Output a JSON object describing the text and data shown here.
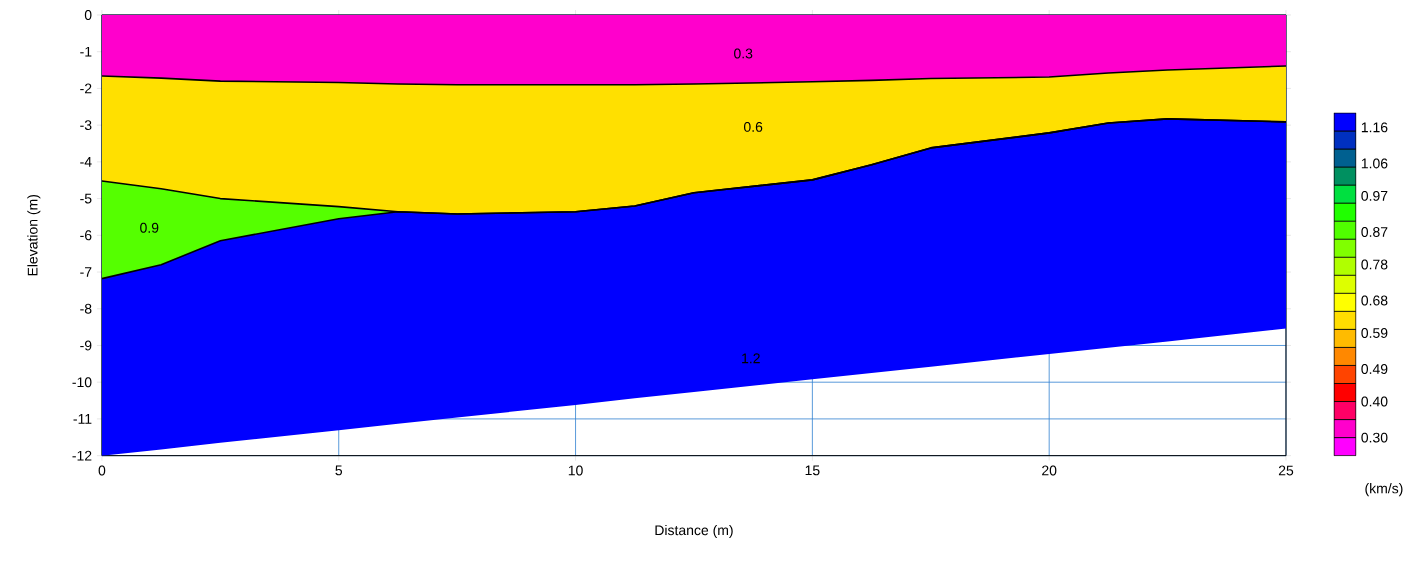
{
  "chart_data": {
    "type": "area",
    "stacked": true,
    "xlabel": "Distance (m)",
    "ylabel": "Elevation (m)",
    "clabel": "(km/s)",
    "x": [
      0,
      1.25,
      2.5,
      5,
      6.25,
      7.5,
      10,
      11.25,
      12.5,
      15,
      16.25,
      17.5,
      20,
      21.25,
      22.5,
      25
    ],
    "series": [
      {
        "color": "#ff00cc",
        "values": [
          -1.66,
          -1.72,
          -1.8,
          -1.84,
          -1.88,
          -1.9,
          -1.9,
          -1.9,
          -1.88,
          -1.82,
          -1.78,
          -1.73,
          -1.69,
          -1.58,
          -1.5,
          -1.39
        ]
      },
      {
        "color": "#ffe000",
        "values": [
          -2.86,
          -3.01,
          -3.2,
          -3.38,
          -3.48,
          -3.52,
          -3.46,
          -3.3,
          -2.96,
          -2.67,
          -2.3,
          -1.89,
          -1.52,
          -1.36,
          -1.33,
          -1.52
        ]
      },
      {
        "color": "#55ff00",
        "values": [
          -2.66,
          -2.07,
          -1.15,
          -0.33,
          0,
          0,
          0,
          0,
          0,
          0,
          0,
          0,
          0,
          0,
          0,
          0
        ]
      },
      {
        "color": "#0000ff",
        "values": [
          -4.82,
          -5.03,
          -5.5,
          -5.76,
          -5.77,
          -5.54,
          -5.26,
          -5.24,
          -5.43,
          -5.43,
          -5.67,
          -5.96,
          -6.02,
          -6.12,
          -6.06,
          -5.63
        ]
      }
    ],
    "xlim": [
      0,
      25
    ],
    "ylim": [
      -12,
      0
    ],
    "xticks": [
      0,
      5,
      10,
      15,
      20,
      25
    ],
    "yticks": [
      -12,
      -11,
      -10,
      -9,
      -8,
      -7,
      -6,
      -5,
      -4,
      -3,
      -2,
      -1,
      0
    ],
    "grid": true,
    "clim": [
      0.25,
      1.2
    ],
    "cticks": [
      {
        "value": 0.3,
        "label": "0.30"
      },
      {
        "value": 0.4,
        "label": "0.40"
      },
      {
        "value": 0.49,
        "label": "0.49"
      },
      {
        "value": 0.59,
        "label": "0.59"
      },
      {
        "value": 0.68,
        "label": "0.68"
      },
      {
        "value": 0.78,
        "label": "0.78"
      },
      {
        "value": 0.87,
        "label": "0.87"
      },
      {
        "value": 0.97,
        "label": "0.97"
      },
      {
        "value": 1.06,
        "label": "1.06"
      },
      {
        "value": 1.16,
        "label": "1.16"
      }
    ],
    "annotations": [
      "0.3",
      "0.6",
      "0.9",
      "1.2"
    ]
  }
}
